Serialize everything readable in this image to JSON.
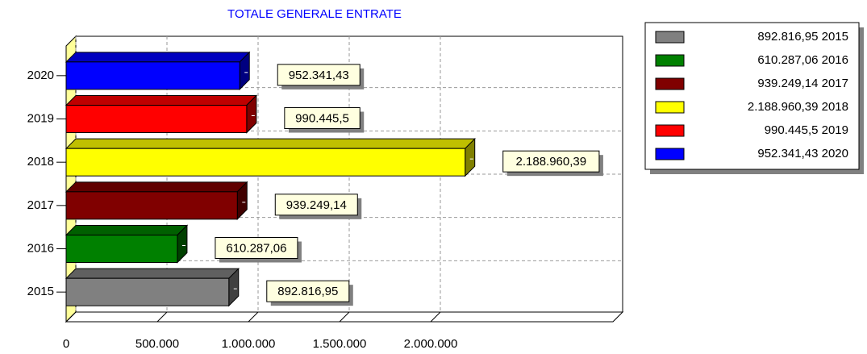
{
  "chart_data": {
    "type": "bar",
    "orientation": "horizontal",
    "title": "TOTALE GENERALE ENTRATE",
    "categories": [
      "2015",
      "2016",
      "2017",
      "2018",
      "2019",
      "2020"
    ],
    "values": [
      892816.95,
      610287.06,
      939249.14,
      2188960.39,
      990445.5,
      952341.43
    ],
    "value_labels": [
      "892.816,95",
      "610.287,06",
      "939.249,14",
      "2.188.960,39",
      "990.445,5",
      "952.341,43"
    ],
    "colors": [
      "#808080",
      "#008000",
      "#800000",
      "#ffff00",
      "#ff0000",
      "#0000ff"
    ],
    "xlim": [
      0,
      3000000
    ],
    "xticks": [
      0,
      {
        "value": 500000,
        "label": "500.000"
      },
      {
        "value": 1000000,
        "label": "1.000.000"
      },
      {
        "value": 1500000,
        "label": "1.500.000"
      },
      {
        "value": 2000000,
        "label": "2.000.000"
      }
    ],
    "grid": true,
    "legend": "upper right"
  }
}
